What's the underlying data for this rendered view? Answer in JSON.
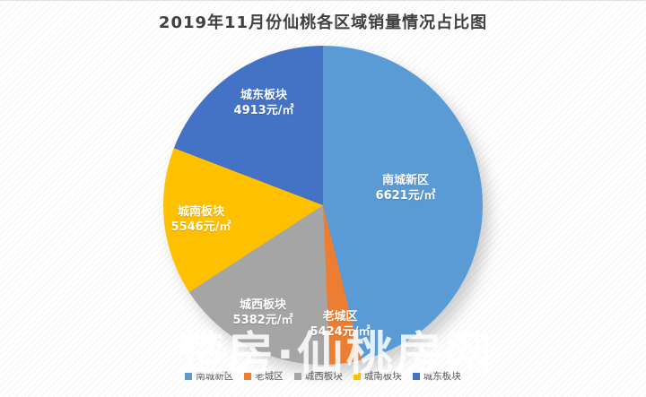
{
  "title": "2019年11月份仙桃各区域销量情况占比图",
  "watermark": "楚房·仙桃房网",
  "chart_data": {
    "type": "pie",
    "title": "2019年11月份仙桃各区域销量情况占比图",
    "legend_position": "bottom",
    "grid": false,
    "series": [
      {
        "name": "南城新区",
        "price": "6621元/㎡",
        "color": "#5B9BD5",
        "start_angle": 0,
        "end_angle": 166,
        "share_pct": 46.1
      },
      {
        "name": "老城区",
        "price": "5424元/㎡",
        "color": "#ED7D31",
        "start_angle": 166,
        "end_angle": 177.5,
        "share_pct": 3.2
      },
      {
        "name": "城西板块",
        "price": "5382元/㎡",
        "color": "#A5A5A5",
        "start_angle": 177.5,
        "end_angle": 237,
        "share_pct": 16.5
      },
      {
        "name": "城南板块",
        "price": "5546元/㎡",
        "color": "#FFC000",
        "start_angle": 237,
        "end_angle": 291,
        "share_pct": 15.0
      },
      {
        "name": "城东板块",
        "price": "4913元/㎡",
        "color": "#4472C4",
        "start_angle": 291,
        "end_angle": 360,
        "share_pct": 19.2
      }
    ],
    "legend": [
      "南城新区",
      "老城区",
      "城西板块",
      "城南板块",
      "城东板块"
    ]
  }
}
